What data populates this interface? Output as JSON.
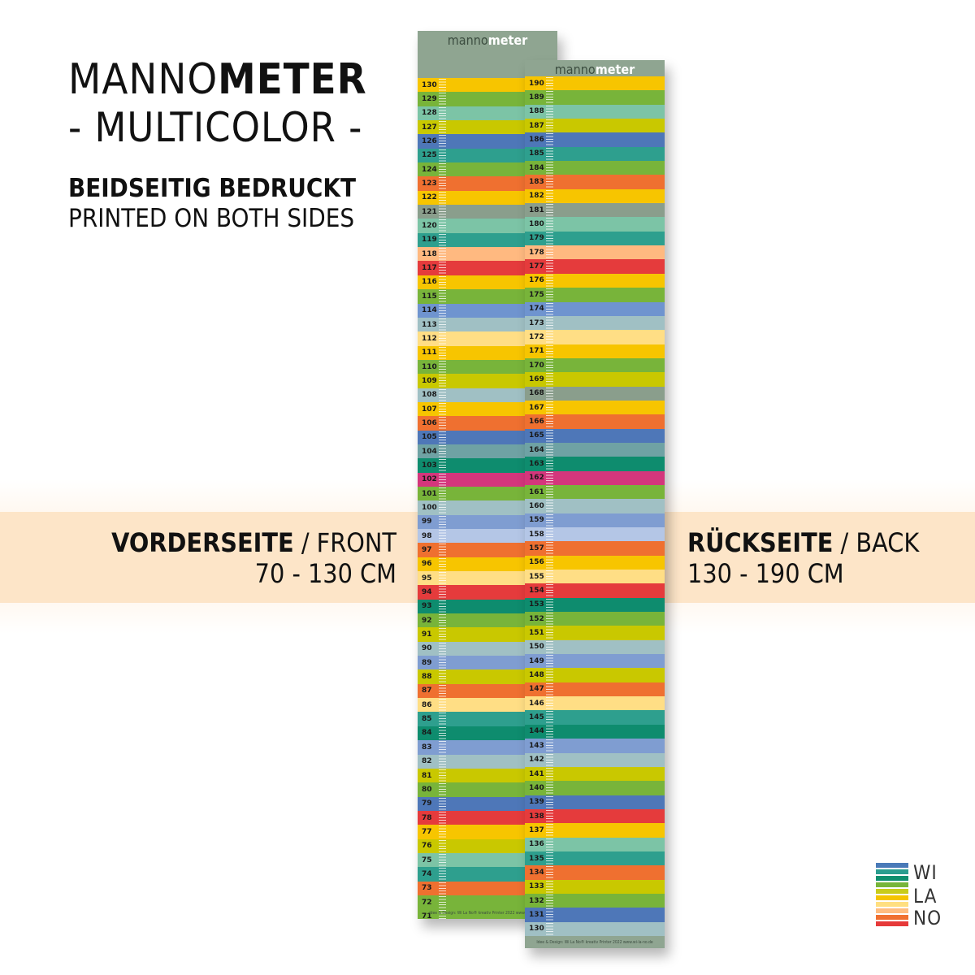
{
  "heading": {
    "title_light": "MANNO",
    "title_bold": "METER",
    "subtitle": "- MULTICOLOR -"
  },
  "print_info": {
    "de": "BEIDSEITIG BEDRUCKT",
    "en": "PRINTED ON BOTH SIDES"
  },
  "front": {
    "label_de": "VORDERSEITE",
    "sep": " / ",
    "label_en": "FRONT",
    "range": "70 - 130 CM"
  },
  "back": {
    "label_de": "RÜCKSEITE",
    "sep": " / ",
    "label_en": "BACK",
    "range": "130 - 190 CM"
  },
  "brand": {
    "light": "manno",
    "bold": "meter"
  },
  "footer_text": "Idee & Design: Wi La No® kreativ Printer 2022 www.wi-la-no.de",
  "logo": {
    "lines": [
      "WI",
      "LA",
      "NO"
    ],
    "colors": [
      "#4a7ab8",
      "#2a9d8f",
      "#0f8f6f",
      "#77b53a",
      "#c8cc1a",
      "#f5c400",
      "#ffdf80",
      "#ffbd80",
      "#f07030",
      "#e63a3a"
    ]
  },
  "colors": {
    "band": "#fde5c8",
    "strip_border": "#8fa591"
  },
  "front_strip": {
    "top": 130,
    "colors": [
      "#f7c500",
      "#78b43a",
      "#7cc4a6",
      "#c9c800",
      "#4e77b8",
      "#2e9f8e",
      "#78b43a",
      "#ef7030",
      "#f7c500",
      "#8a9e8c",
      "#7cc4a6",
      "#2e9f8e",
      "#ffb980",
      "#e53b3c",
      "#f7c500",
      "#78b43a",
      "#6f94cf",
      "#a0c0c4",
      "#ffde85",
      "#f7c500",
      "#78b43a",
      "#c9c800",
      "#a0c0c4",
      "#f7c500",
      "#ef7030",
      "#4e77b8",
      "#6fa2a4",
      "#0e8c6e",
      "#d4367c",
      "#78b43a",
      "#a0c0c4",
      "#7f9dd1",
      "#b4c6e6",
      "#ef7030",
      "#f7c500",
      "#ffde85",
      "#e53b3c",
      "#0e8c6e",
      "#78b43a",
      "#c9c800",
      "#a0c0c4",
      "#7f9dd1",
      "#c9c800",
      "#ef7030",
      "#ffde85",
      "#2e9f8e",
      "#0e8c6e",
      "#7f9dd1",
      "#a0c0c4",
      "#c9c800",
      "#78b43a",
      "#4e77b8",
      "#e53b3c",
      "#f7c500",
      "#c9c800",
      "#7cc4a6",
      "#2e9f8e",
      "#ef7030",
      "#78b43a",
      "#78b43a",
      "#4e77b8",
      "#a0c0c4"
    ]
  },
  "back_strip": {
    "top": 190,
    "colors": [
      "#f7c500",
      "#78b43a",
      "#7cc4a6",
      "#c9c800",
      "#4e77b8",
      "#2e9f8e",
      "#78b43a",
      "#ef7030",
      "#f7c500",
      "#8a9e8c",
      "#7cc4a6",
      "#2e9f8e",
      "#ffb980",
      "#e53b3c",
      "#f7c500",
      "#78b43a",
      "#6f94cf",
      "#a0c0c4",
      "#ffde85",
      "#f7c500",
      "#78b43a",
      "#c9c800",
      "#8a9e8c",
      "#f7c500",
      "#ef7030",
      "#4e77b8",
      "#6fa2a4",
      "#0e8c6e",
      "#d4367c",
      "#78b43a",
      "#a0c0c4",
      "#7f9dd1",
      "#b4c6e6",
      "#ef7030",
      "#f7c500",
      "#ffde85",
      "#e53b3c",
      "#0e8c6e",
      "#78b43a",
      "#c9c800",
      "#a0c0c4",
      "#7f9dd1",
      "#c9c800",
      "#ef7030",
      "#ffde85",
      "#2e9f8e",
      "#0e8c6e",
      "#7f9dd1",
      "#a0c0c4",
      "#c9c800",
      "#78b43a",
      "#4e77b8",
      "#e53b3c",
      "#f7c500",
      "#7cc4a6",
      "#2e9f8e",
      "#ef7030",
      "#c9c800",
      "#78b43a",
      "#4e77b8",
      "#a0c0c4"
    ]
  }
}
